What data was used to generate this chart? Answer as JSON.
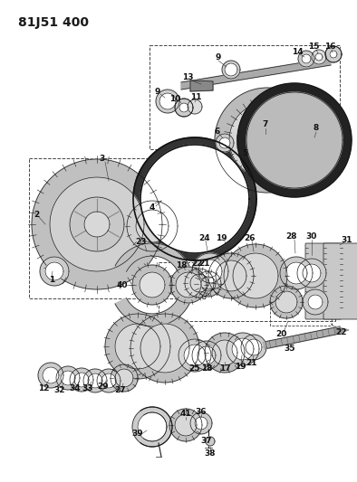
{
  "title": "81J51 400",
  "bg_color": "#ffffff",
  "line_color": "#1a1a1a",
  "title_fontsize": 10,
  "label_fontsize": 6.5,
  "lw_thin": 0.5,
  "lw_med": 0.8,
  "lw_thick": 1.3
}
